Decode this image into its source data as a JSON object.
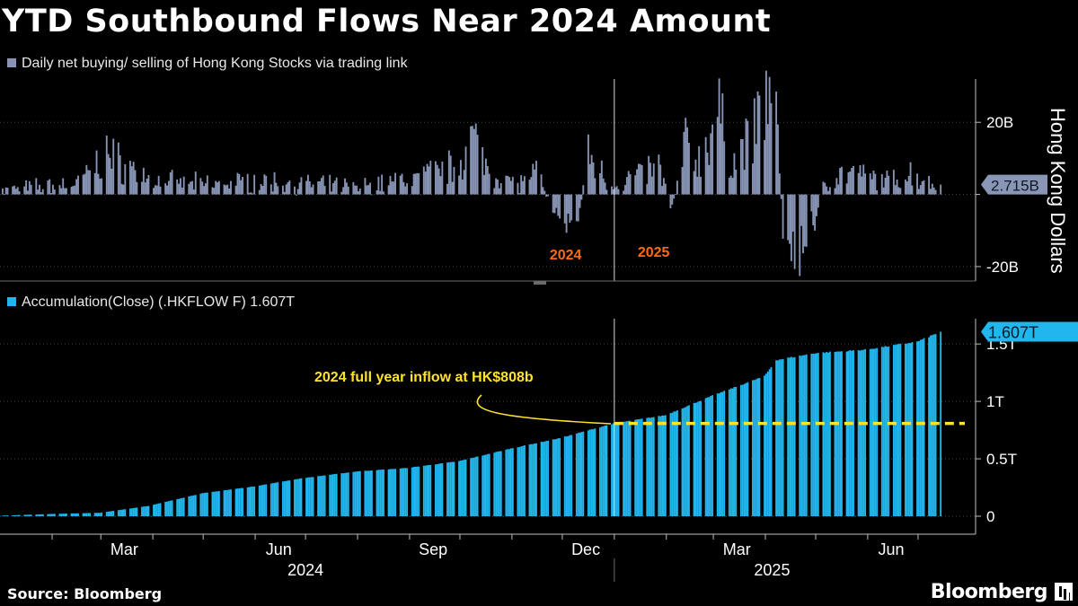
{
  "title": "YTD Southbound Flows Near 2024 Amount",
  "footer": {
    "source": "Source: Bloomberg",
    "brand": "Bloomberg"
  },
  "colors": {
    "daily": "#8794b4",
    "accum": "#21b7ee",
    "annotation": "#ffe22b",
    "year_label": "#ff6a13",
    "axis": "#bfbfbf"
  },
  "chart_data": [
    {
      "type": "bar",
      "legend": "Daily net buying/ selling of Hong Kong Stocks via trading link",
      "ylabel": "Hong Kong Dollars",
      "ylim": [
        -24,
        32
      ],
      "y_ticks": [
        {
          "value": 20,
          "label": "20B"
        },
        {
          "value": -20,
          "label": "-20B"
        }
      ],
      "last_value_label": "2.715B",
      "last_value": 2.715,
      "period_labels": [
        {
          "label": "2024",
          "date": "2024-11-15"
        },
        {
          "label": "2025",
          "date": "2025-01-20"
        }
      ],
      "divider_date": "2025-01-01",
      "x_range": [
        "2024-01-02",
        "2025-07-31"
      ],
      "keypoints": [
        [
          "2024-01-02",
          2
        ],
        [
          "2024-01-20",
          3
        ],
        [
          "2024-02-15",
          4
        ],
        [
          "2024-03-04",
          14
        ],
        [
          "2024-04-01",
          5
        ],
        [
          "2024-05-01",
          4
        ],
        [
          "2024-06-03",
          5
        ],
        [
          "2024-07-01",
          4
        ],
        [
          "2024-08-01",
          3
        ],
        [
          "2024-09-02",
          6
        ],
        [
          "2024-09-27",
          10
        ],
        [
          "2024-10-08",
          20
        ],
        [
          "2024-10-18",
          9
        ],
        [
          "2024-11-04",
          4
        ],
        [
          "2024-11-15",
          8
        ],
        [
          "2024-11-28",
          -8
        ],
        [
          "2024-12-03",
          -10
        ],
        [
          "2024-12-10",
          -8
        ],
        [
          "2024-12-16",
          14
        ],
        [
          "2024-12-31",
          3
        ],
        [
          "2025-01-13",
          7
        ],
        [
          "2025-01-27",
          10
        ],
        [
          "2025-02-04",
          -4
        ],
        [
          "2025-02-12",
          18
        ],
        [
          "2025-02-20",
          12
        ],
        [
          "2025-03-03",
          29
        ],
        [
          "2025-03-11",
          12
        ],
        [
          "2025-03-24",
          20
        ],
        [
          "2025-04-01",
          35
        ],
        [
          "2025-04-08",
          21
        ],
        [
          "2025-04-11",
          -12
        ],
        [
          "2025-04-14",
          -18
        ],
        [
          "2025-04-25",
          -18
        ],
        [
          "2025-05-06",
          5
        ],
        [
          "2025-05-20",
          8
        ],
        [
          "2025-06-03",
          6
        ],
        [
          "2025-06-16",
          5
        ],
        [
          "2025-06-25",
          8
        ],
        [
          "2025-07-09",
          4
        ],
        [
          "2025-07-14",
          2.715
        ]
      ]
    },
    {
      "type": "bar",
      "legend": "Accumulation(Close) (.HKFLOW F) 1.607T",
      "ylim": [
        -0.15,
        1.72
      ],
      "y_ticks": [
        {
          "value": 0,
          "label": "0"
        },
        {
          "value": 0.5,
          "label": "0.5T"
        },
        {
          "value": 1,
          "label": "1T"
        },
        {
          "value": 1.5,
          "label": "1.5T"
        }
      ],
      "last_value_label": "1.607T",
      "last_value": 1.607,
      "reference_line": {
        "value": 0.808,
        "start_date": "2025-01-01",
        "label": "2024 full year inflow at HK$808b"
      },
      "keypoints": [
        [
          "2024-01-02",
          0.005
        ],
        [
          "2024-01-31",
          0.02
        ],
        [
          "2024-02-29",
          0.03
        ],
        [
          "2024-03-29",
          0.09
        ],
        [
          "2024-04-30",
          0.2
        ],
        [
          "2024-05-31",
          0.26
        ],
        [
          "2024-06-28",
          0.33
        ],
        [
          "2024-07-31",
          0.39
        ],
        [
          "2024-08-30",
          0.42
        ],
        [
          "2024-09-30",
          0.48
        ],
        [
          "2024-10-31",
          0.59
        ],
        [
          "2024-11-29",
          0.68
        ],
        [
          "2024-12-31",
          0.808
        ],
        [
          "2025-01-31",
          0.88
        ],
        [
          "2025-02-28",
          1.05
        ],
        [
          "2025-03-31",
          1.22
        ],
        [
          "2025-04-07",
          1.36
        ],
        [
          "2025-04-30",
          1.42
        ],
        [
          "2025-05-30",
          1.45
        ],
        [
          "2025-06-30",
          1.52
        ],
        [
          "2025-07-14",
          1.607
        ]
      ]
    }
  ],
  "x_axis": {
    "months": [
      {
        "label": "Mar",
        "date": "2024-03-15"
      },
      {
        "label": "Jun",
        "date": "2024-06-15"
      },
      {
        "label": "Sep",
        "date": "2024-09-15"
      },
      {
        "label": "Dec",
        "date": "2024-12-15"
      },
      {
        "label": "Mar",
        "date": "2025-03-15"
      },
      {
        "label": "Jun",
        "date": "2025-06-15"
      }
    ],
    "years": [
      {
        "label": "2024",
        "date": "2024-07-01"
      },
      {
        "label": "2025",
        "date": "2025-04-05"
      }
    ]
  }
}
